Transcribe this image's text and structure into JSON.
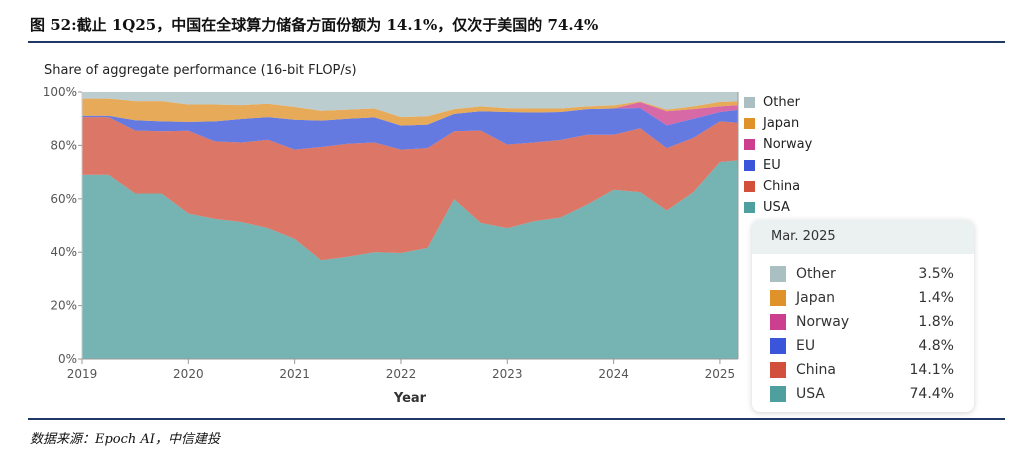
{
  "figure_title": "图 52:截止 1Q25，中国在全球算力储备方面份额为 14.1%，仅次于美国的 74.4%",
  "source": "数据来源：Epoch AI，中信建投",
  "chart_data": {
    "type": "area",
    "stacked": true,
    "title": "Share of aggregate performance (16-bit FLOP/s)",
    "xlabel": "Year",
    "ylabel": "",
    "xlim": [
      2019,
      2025.17
    ],
    "ylim": [
      0,
      100
    ],
    "x_ticks": [
      "2019",
      "2020",
      "2021",
      "2022",
      "2023",
      "2024",
      "2025"
    ],
    "y_ticks": [
      "0%",
      "20%",
      "40%",
      "60%",
      "80%",
      "100%"
    ],
    "legend_position": "right",
    "x": [
      2019.0,
      2019.25,
      2019.5,
      2019.75,
      2020.0,
      2020.25,
      2020.5,
      2020.75,
      2021.0,
      2021.25,
      2021.5,
      2021.75,
      2022.0,
      2022.25,
      2022.5,
      2022.75,
      2023.0,
      2023.25,
      2023.5,
      2023.75,
      2024.0,
      2024.25,
      2024.5,
      2024.75,
      2025.0,
      2025.17
    ],
    "series": [
      {
        "name": "USA",
        "color": "#4e9f9d",
        "values": [
          69,
          69,
          62,
          62,
          54.5,
          52.5,
          51.3,
          49,
          45,
          37,
          38.3,
          40,
          39.7,
          41.6,
          59.9,
          51,
          49,
          51.6,
          53,
          57.8,
          63.4,
          62.5,
          55.6,
          62.5,
          73.8,
          74.4
        ]
      },
      {
        "name": "China",
        "color": "#d24f3b",
        "values": [
          21.6,
          21.6,
          23.6,
          23.3,
          31,
          29,
          29.8,
          33.1,
          33.4,
          42.4,
          42.3,
          41.1,
          38.7,
          37.4,
          25.4,
          34.6,
          31.3,
          29.5,
          29,
          26.2,
          20.6,
          23.9,
          23.4,
          20.3,
          15.2,
          14.1
        ]
      },
      {
        "name": "EU",
        "color": "#3a55d9",
        "values": [
          0.5,
          0.5,
          3.8,
          3.7,
          3.3,
          7.5,
          8.8,
          8.5,
          11.2,
          9.9,
          9.4,
          9.4,
          9,
          8.8,
          6.5,
          7.2,
          12.2,
          11.2,
          10.5,
          9.6,
          9.8,
          7.6,
          8.5,
          7.2,
          3.5,
          4.8
        ]
      },
      {
        "name": "Norway",
        "color": "#cc3f8e",
        "values": [
          0,
          0,
          0,
          0,
          0,
          0,
          0,
          0,
          0,
          0,
          0,
          0,
          0,
          0,
          0,
          0,
          0,
          0,
          0,
          0,
          0,
          2.2,
          5.3,
          3.6,
          2.1,
          1.8
        ]
      },
      {
        "name": "Japan",
        "color": "#e0922a",
        "values": [
          6.4,
          6.4,
          7.2,
          7.6,
          6.5,
          6.3,
          5.2,
          5,
          4.8,
          3.7,
          3.4,
          3.3,
          3.2,
          3.1,
          1.8,
          1.8,
          1.4,
          1.5,
          1.3,
          1,
          1.2,
          0.3,
          0.6,
          1,
          1.7,
          1.4
        ]
      },
      {
        "name": "Other",
        "color": "#a9bfc1",
        "values": [
          2.5,
          2.5,
          3.4,
          3.4,
          4.7,
          4.7,
          4.9,
          4.4,
          5.6,
          7,
          6.6,
          6.2,
          9.4,
          9.1,
          6.4,
          5.4,
          6.1,
          6.2,
          6.2,
          5.4,
          5,
          3.5,
          6.6,
          5.4,
          3.7,
          3.5
        ]
      }
    ],
    "legend": [
      "Other",
      "Japan",
      "Norway",
      "EU",
      "China",
      "USA"
    ],
    "tooltip": {
      "title": "Mar. 2025",
      "rows": [
        {
          "name": "Other",
          "value": "3.5%",
          "color": "#a9bfc1"
        },
        {
          "name": "Japan",
          "value": "1.4%",
          "color": "#e0922a"
        },
        {
          "name": "Norway",
          "value": "1.8%",
          "color": "#cc3f8e"
        },
        {
          "name": "EU",
          "value": "4.8%",
          "color": "#3a55d9"
        },
        {
          "name": "China",
          "value": "14.1%",
          "color": "#d24f3b"
        },
        {
          "name": "USA",
          "value": "74.4%",
          "color": "#4e9f9d"
        }
      ]
    }
  }
}
